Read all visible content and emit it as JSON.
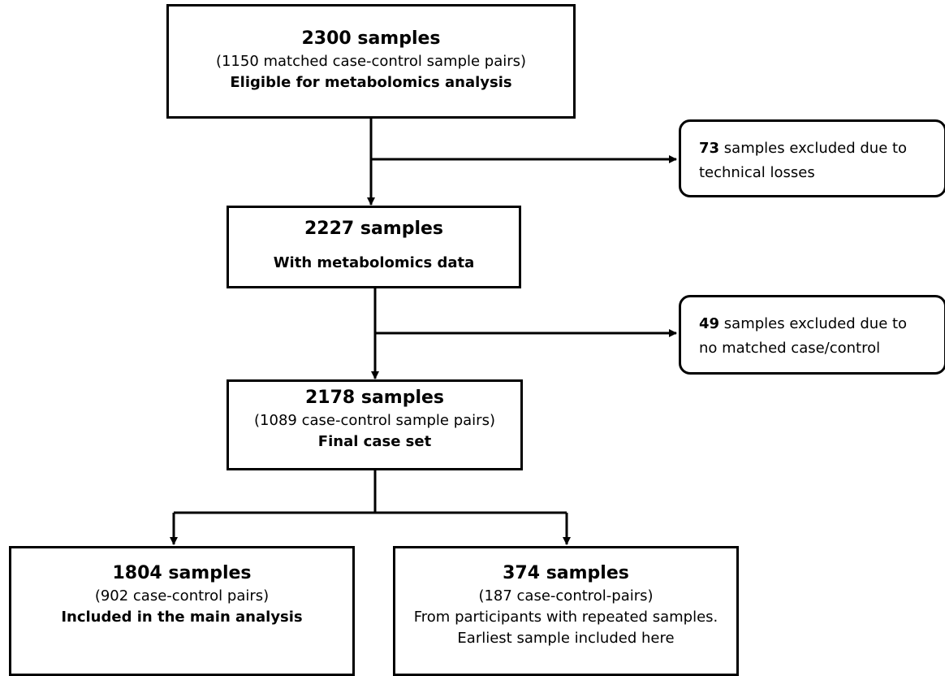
{
  "boxes": {
    "eligible": {
      "title": "2300 samples",
      "line1": "(1150 matched case-control sample pairs)",
      "line2": "Eligible for metabolomics analysis"
    },
    "metab": {
      "title": "2227 samples",
      "line1": "With metabolomics data"
    },
    "final": {
      "title": "2178 samples",
      "line1": "(1089 case-control sample pairs)",
      "line2": "Final case set"
    },
    "main": {
      "title": "1804 samples",
      "line1": "(902 case-control pairs)",
      "line2": "Included in the main analysis"
    },
    "repeated": {
      "title": "374 samples",
      "line1": "(187 case-control-pairs)",
      "line2": "From participants with repeated samples.",
      "line3": "Earliest sample included here"
    }
  },
  "exclusions": {
    "technical": {
      "count": "73",
      "text_a": " samples excluded due to",
      "text_b": "technical losses"
    },
    "unmatched": {
      "count": "49",
      "text_a": " samples excluded due to",
      "text_b": "no matched case/control"
    }
  }
}
